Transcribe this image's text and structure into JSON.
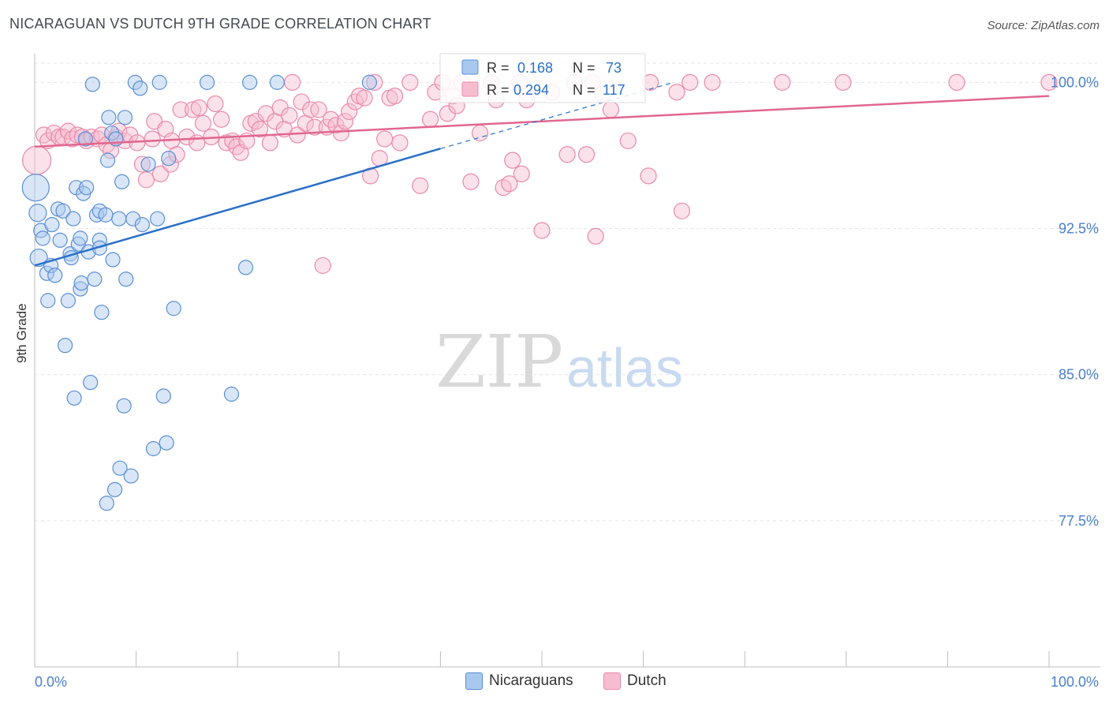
{
  "title": "NICARAGUAN VS DUTCH 9TH GRADE CORRELATION CHART",
  "source": "Source: ZipAtlas.com",
  "watermark": {
    "zip": "ZIP",
    "atlas": "atlas"
  },
  "colors": {
    "nicaraguans_fill": "#a9c8ee",
    "nicaraguans_stroke": "#5b8fd4",
    "nicaraguans_line": "#2a70c9",
    "dutch_fill": "#f6bdd0",
    "dutch_stroke": "#e98aaa",
    "dutch_line": "#e0678f",
    "tick_label": "#4a7fcc"
  },
  "stats_legend": {
    "rows": [
      {
        "r_label": "R =",
        "r_value": "0.168",
        "n_label": "N =",
        "n_value": "73"
      },
      {
        "r_label": "R =",
        "r_value": "0.294",
        "n_label": "N =",
        "n_value": "117"
      }
    ]
  },
  "bottom_legend": {
    "items": [
      "Nicaraguans",
      "Dutch"
    ]
  },
  "chart_data": {
    "type": "scatter",
    "title": "NICARAGUAN VS DUTCH 9TH GRADE CORRELATION CHART",
    "ylabel": "9th Grade",
    "xlabel": "",
    "xlim": [
      0,
      100
    ],
    "ylim": [
      70.0,
      102.0
    ],
    "x_tick_labels": [
      "0.0%",
      "100.0%"
    ],
    "y_ticks": [
      77.5,
      85.0,
      92.5,
      100.0
    ],
    "y_tick_labels": [
      "77.5%",
      "85.0%",
      "92.5%",
      "100.0%"
    ],
    "grid": true,
    "series": [
      {
        "name": "Nicaraguans",
        "R": 0.168,
        "N": 73,
        "trend": {
          "x": [
            0,
            40
          ],
          "y": [
            90.6,
            96.6
          ]
        },
        "trend_dashed": {
          "x": [
            40,
            63
          ],
          "y": [
            96.6,
            100.0
          ]
        },
        "points": [
          [
            0.1,
            94.6
          ],
          [
            0.3,
            93.3
          ],
          [
            0.4,
            91.0
          ],
          [
            0.6,
            92.4
          ],
          [
            0.8,
            92.0
          ],
          [
            1.2,
            90.2
          ],
          [
            1.3,
            88.8
          ],
          [
            1.6,
            90.6
          ],
          [
            1.7,
            92.7
          ],
          [
            2.0,
            90.1
          ],
          [
            2.3,
            93.5
          ],
          [
            2.5,
            91.9
          ],
          [
            2.8,
            93.4
          ],
          [
            3.0,
            86.5
          ],
          [
            3.3,
            88.8
          ],
          [
            3.5,
            91.2
          ],
          [
            3.6,
            91.0
          ],
          [
            3.8,
            93.0
          ],
          [
            3.9,
            83.8
          ],
          [
            4.1,
            94.6
          ],
          [
            4.3,
            91.7
          ],
          [
            4.5,
            92.0
          ],
          [
            4.5,
            89.4
          ],
          [
            4.6,
            89.7
          ],
          [
            4.8,
            94.3
          ],
          [
            5.0,
            97.1
          ],
          [
            5.1,
            94.6
          ],
          [
            5.3,
            91.3
          ],
          [
            5.5,
            84.6
          ],
          [
            5.7,
            99.9
          ],
          [
            5.9,
            89.9
          ],
          [
            6.1,
            93.2
          ],
          [
            6.4,
            93.4
          ],
          [
            6.4,
            91.9
          ],
          [
            6.4,
            91.5
          ],
          [
            6.6,
            88.2
          ],
          [
            7.0,
            93.2
          ],
          [
            7.1,
            78.4
          ],
          [
            7.2,
            96.0
          ],
          [
            7.3,
            98.2
          ],
          [
            7.6,
            97.4
          ],
          [
            7.7,
            90.9
          ],
          [
            7.9,
            79.1
          ],
          [
            8.0,
            97.1
          ],
          [
            8.3,
            93.0
          ],
          [
            8.4,
            80.2
          ],
          [
            8.6,
            94.9
          ],
          [
            8.8,
            83.4
          ],
          [
            8.9,
            98.2
          ],
          [
            9.0,
            89.9
          ],
          [
            9.5,
            79.8
          ],
          [
            9.7,
            93.0
          ],
          [
            9.9,
            100.0
          ],
          [
            10.4,
            99.7
          ],
          [
            10.6,
            92.7
          ],
          [
            11.2,
            95.8
          ],
          [
            11.7,
            81.2
          ],
          [
            12.1,
            93.0
          ],
          [
            12.3,
            100.0
          ],
          [
            12.7,
            83.9
          ],
          [
            13.0,
            81.5
          ],
          [
            13.2,
            96.1
          ],
          [
            13.7,
            88.4
          ],
          [
            17.0,
            100.0
          ],
          [
            19.4,
            84.0
          ],
          [
            20.8,
            90.5
          ],
          [
            21.2,
            100.0
          ],
          [
            23.9,
            100.0
          ],
          [
            33.0,
            100.0
          ]
        ]
      },
      {
        "name": "Dutch",
        "R": 0.294,
        "N": 117,
        "trend": {
          "x": [
            0,
            100
          ],
          "y": [
            96.7,
            99.3
          ]
        },
        "points": [
          [
            0.2,
            96.0
          ],
          [
            0.9,
            97.3
          ],
          [
            1.3,
            97.0
          ],
          [
            1.9,
            97.4
          ],
          [
            2.4,
            97.2
          ],
          [
            2.8,
            97.2
          ],
          [
            3.3,
            97.5
          ],
          [
            3.7,
            97.1
          ],
          [
            4.2,
            97.3
          ],
          [
            4.7,
            97.2
          ],
          [
            5.1,
            97.0
          ],
          [
            5.6,
            97.2
          ],
          [
            6.2,
            97.1
          ],
          [
            6.6,
            97.3
          ],
          [
            7.1,
            96.8
          ],
          [
            7.5,
            96.5
          ],
          [
            8.0,
            97.2
          ],
          [
            8.3,
            97.5
          ],
          [
            8.9,
            97.0
          ],
          [
            9.4,
            97.3
          ],
          [
            10.1,
            96.9
          ],
          [
            10.6,
            95.8
          ],
          [
            11.0,
            95.0
          ],
          [
            11.6,
            97.1
          ],
          [
            11.8,
            98.0
          ],
          [
            12.4,
            95.3
          ],
          [
            12.9,
            97.6
          ],
          [
            13.4,
            95.8
          ],
          [
            13.5,
            97.0
          ],
          [
            14.0,
            96.3
          ],
          [
            14.4,
            98.6
          ],
          [
            15.0,
            97.2
          ],
          [
            15.6,
            98.6
          ],
          [
            16.0,
            96.9
          ],
          [
            16.2,
            98.7
          ],
          [
            16.6,
            97.9
          ],
          [
            17.4,
            97.2
          ],
          [
            17.8,
            98.9
          ],
          [
            18.4,
            98.1
          ],
          [
            18.9,
            96.9
          ],
          [
            19.5,
            97.0
          ],
          [
            19.9,
            96.7
          ],
          [
            20.3,
            96.4
          ],
          [
            20.9,
            97.0
          ],
          [
            21.3,
            97.9
          ],
          [
            21.8,
            98.0
          ],
          [
            22.2,
            97.6
          ],
          [
            22.8,
            98.4
          ],
          [
            23.2,
            96.9
          ],
          [
            23.7,
            98.0
          ],
          [
            24.2,
            98.7
          ],
          [
            24.6,
            97.6
          ],
          [
            25.1,
            98.3
          ],
          [
            25.4,
            100.0
          ],
          [
            25.9,
            97.3
          ],
          [
            26.3,
            99.0
          ],
          [
            26.7,
            97.9
          ],
          [
            27.2,
            98.6
          ],
          [
            27.6,
            97.7
          ],
          [
            28.0,
            98.6
          ],
          [
            28.4,
            90.6
          ],
          [
            28.8,
            97.7
          ],
          [
            29.2,
            98.1
          ],
          [
            29.7,
            97.8
          ],
          [
            30.2,
            97.4
          ],
          [
            30.6,
            98.0
          ],
          [
            31.0,
            98.5
          ],
          [
            31.6,
            99.0
          ],
          [
            32.0,
            99.3
          ],
          [
            32.5,
            99.2
          ],
          [
            33.1,
            95.2
          ],
          [
            33.5,
            100.0
          ],
          [
            34.0,
            96.1
          ],
          [
            34.5,
            97.1
          ],
          [
            35.0,
            99.2
          ],
          [
            35.5,
            99.3
          ],
          [
            36.0,
            96.9
          ],
          [
            37.0,
            100.0
          ],
          [
            38.0,
            94.7
          ],
          [
            39.0,
            98.1
          ],
          [
            39.5,
            99.5
          ],
          [
            40.2,
            100.0
          ],
          [
            40.7,
            98.4
          ],
          [
            41.2,
            99.3
          ],
          [
            41.6,
            98.8
          ],
          [
            42.1,
            100.0
          ],
          [
            43.0,
            94.9
          ],
          [
            43.9,
            97.4
          ],
          [
            45.0,
            100.0
          ],
          [
            45.5,
            99.1
          ],
          [
            46.2,
            94.6
          ],
          [
            46.8,
            94.8
          ],
          [
            47.1,
            96.0
          ],
          [
            47.8,
            100.0
          ],
          [
            48.0,
            95.3
          ],
          [
            48.5,
            99.1
          ],
          [
            50.0,
            92.4
          ],
          [
            51.0,
            99.5
          ],
          [
            52.5,
            96.3
          ],
          [
            53.2,
            100.0
          ],
          [
            54.4,
            96.3
          ],
          [
            55.0,
            100.0
          ],
          [
            55.3,
            92.1
          ],
          [
            56.0,
            99.4
          ],
          [
            56.8,
            98.6
          ],
          [
            58.5,
            97.0
          ],
          [
            60.5,
            95.2
          ],
          [
            60.7,
            100.0
          ],
          [
            63.3,
            99.5
          ],
          [
            63.8,
            93.4
          ],
          [
            64.6,
            100.0
          ],
          [
            66.8,
            100.0
          ],
          [
            73.7,
            100.0
          ],
          [
            79.7,
            100.0
          ],
          [
            90.9,
            100.0
          ],
          [
            100.0,
            100.0
          ]
        ]
      }
    ]
  }
}
